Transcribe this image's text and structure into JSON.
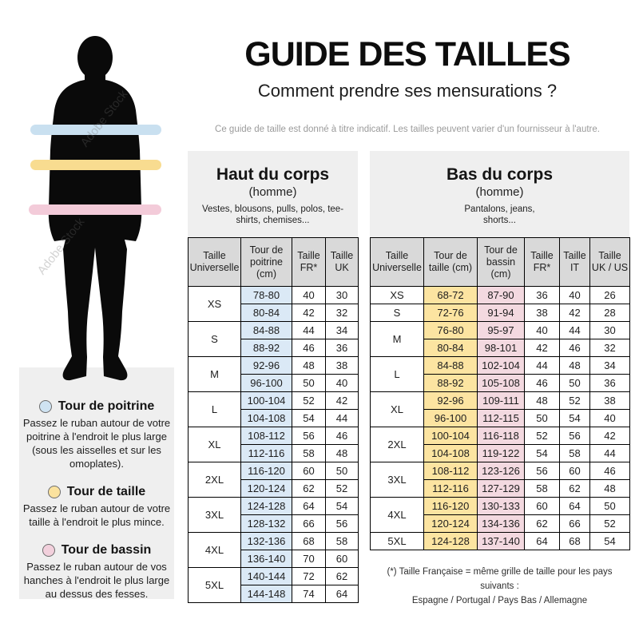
{
  "page": {
    "title": "GUIDE DES TAILLES",
    "subtitle": "Comment prendre ses mensurations ?",
    "disclaimer": "Ce guide de taille est donné à titre indicatif. Les tailles peuvent varier d'un fournisseur à l'autre.",
    "watermark": "Adobe Stock"
  },
  "figure": {
    "silhouette_color": "#0a0a0a",
    "bands": [
      {
        "name": "chest-band",
        "color": "#c9e0f0"
      },
      {
        "name": "waist-band",
        "color": "#f8dc90"
      },
      {
        "name": "hips-band",
        "color": "#f3cbd9"
      }
    ]
  },
  "legend": {
    "items": [
      {
        "color": "#cfe3f2",
        "title": "Tour de poitrine",
        "text": "Passez le ruban autour de votre poitrine à l'endroit le plus large (sous les aisselles et sur les omoplates)."
      },
      {
        "color": "#fbe29e",
        "title": "Tour de taille",
        "text": "Passez le ruban autour de votre taille à l'endroit le plus mince."
      },
      {
        "color": "#f2d0dc",
        "title": "Tour de bassin",
        "text": "Passez le ruban autour de vos hanches à l'endroit le plus large au dessus des fesses."
      }
    ]
  },
  "upper_table": {
    "title": "Haut du corps",
    "subtitle": "(homme)",
    "description": "Vestes, blousons, pulls, polos, tee-shirts, chemises...",
    "headers": [
      "Taille Universelle",
      "Tour de poitrine (cm)",
      "Taille FR*",
      "Taille UK"
    ],
    "highlight_colors": {
      "0": "#dbe9f6"
    },
    "groups": [
      {
        "size": "XS",
        "rows": [
          [
            "78-80",
            "40",
            "30"
          ],
          [
            "80-84",
            "42",
            "32"
          ]
        ]
      },
      {
        "size": "S",
        "rows": [
          [
            "84-88",
            "44",
            "34"
          ],
          [
            "88-92",
            "46",
            "36"
          ]
        ]
      },
      {
        "size": "M",
        "rows": [
          [
            "92-96",
            "48",
            "38"
          ],
          [
            "96-100",
            "50",
            "40"
          ]
        ]
      },
      {
        "size": "L",
        "rows": [
          [
            "100-104",
            "52",
            "42"
          ],
          [
            "104-108",
            "54",
            "44"
          ]
        ]
      },
      {
        "size": "XL",
        "rows": [
          [
            "108-112",
            "56",
            "46"
          ],
          [
            "112-116",
            "58",
            "48"
          ]
        ]
      },
      {
        "size": "2XL",
        "rows": [
          [
            "116-120",
            "60",
            "50"
          ],
          [
            "120-124",
            "62",
            "52"
          ]
        ]
      },
      {
        "size": "3XL",
        "rows": [
          [
            "124-128",
            "64",
            "54"
          ],
          [
            "128-132",
            "66",
            "56"
          ]
        ]
      },
      {
        "size": "4XL",
        "rows": [
          [
            "132-136",
            "68",
            "58"
          ],
          [
            "136-140",
            "70",
            "60"
          ]
        ]
      },
      {
        "size": "5XL",
        "rows": [
          [
            "140-144",
            "72",
            "62"
          ],
          [
            "144-148",
            "74",
            "64"
          ]
        ]
      }
    ]
  },
  "lower_table": {
    "title": "Bas du corps",
    "subtitle": "(homme)",
    "description": "Pantalons, jeans, shorts...",
    "headers": [
      "Taille Universelle",
      "Tour de taille (cm)",
      "Tour de bassin (cm)",
      "Taille FR*",
      "Taille IT",
      "Taille UK / US"
    ],
    "highlight_colors": {
      "0": "#fce4a1",
      "1": "#f3d9e0"
    },
    "groups": [
      {
        "size": "XS",
        "rows": [
          [
            "68-72",
            "87-90",
            "36",
            "40",
            "26"
          ]
        ]
      },
      {
        "size": "S",
        "rows": [
          [
            "72-76",
            "91-94",
            "38",
            "42",
            "28"
          ]
        ]
      },
      {
        "size": "M",
        "rows": [
          [
            "76-80",
            "95-97",
            "40",
            "44",
            "30"
          ],
          [
            "80-84",
            "98-101",
            "42",
            "46",
            "32"
          ]
        ]
      },
      {
        "size": "L",
        "rows": [
          [
            "84-88",
            "102-104",
            "44",
            "48",
            "34"
          ],
          [
            "88-92",
            "105-108",
            "46",
            "50",
            "36"
          ]
        ]
      },
      {
        "size": "XL",
        "rows": [
          [
            "92-96",
            "109-111",
            "48",
            "52",
            "38"
          ],
          [
            "96-100",
            "112-115",
            "50",
            "54",
            "40"
          ]
        ]
      },
      {
        "size": "2XL",
        "rows": [
          [
            "100-104",
            "116-118",
            "52",
            "56",
            "42"
          ],
          [
            "104-108",
            "119-122",
            "54",
            "58",
            "44"
          ]
        ]
      },
      {
        "size": "3XL",
        "rows": [
          [
            "108-112",
            "123-126",
            "56",
            "60",
            "46"
          ],
          [
            "112-116",
            "127-129",
            "58",
            "62",
            "48"
          ]
        ]
      },
      {
        "size": "4XL",
        "rows": [
          [
            "116-120",
            "130-133",
            "60",
            "64",
            "50"
          ],
          [
            "120-124",
            "134-136",
            "62",
            "66",
            "52"
          ]
        ]
      },
      {
        "size": "5XL",
        "rows": [
          [
            "124-128",
            "137-140",
            "64",
            "68",
            "54"
          ]
        ]
      }
    ],
    "footnote_line1": "(*) Taille Française = même grille de taille pour les pays suivants :",
    "footnote_line2": "Espagne / Portugal / Pays Bas / Allemagne"
  }
}
